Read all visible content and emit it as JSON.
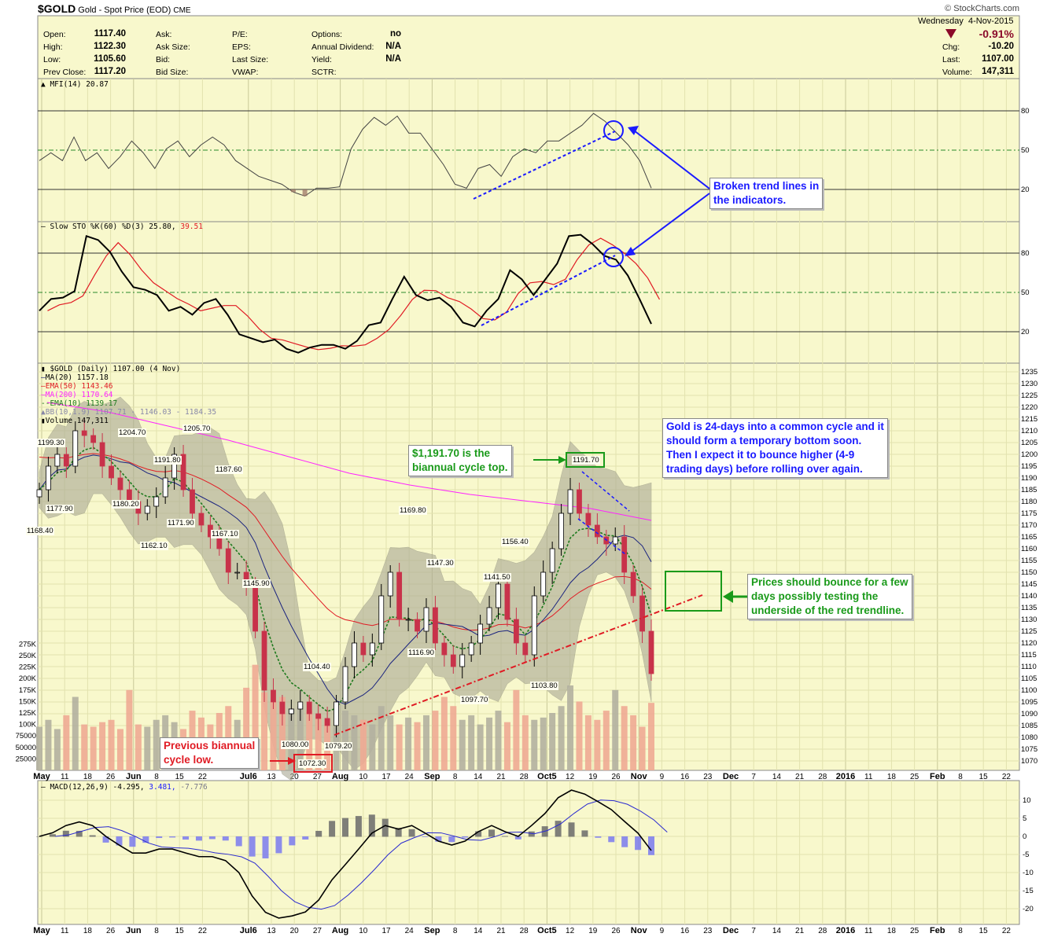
{
  "header": {
    "symbol": "$GOLD",
    "name": "Gold - Spot Price (EOD)",
    "exchange": "CME",
    "copyright": "© StockCharts.com",
    "day": "Wednesday",
    "date": "4-Nov-2015",
    "pct_change": "-0.91%",
    "chg_label": "Chg:",
    "chg": "-10.20",
    "last_label": "Last:",
    "last": "1107.00",
    "volume_label": "Volume:",
    "volume": "147,311",
    "fields": [
      {
        "label": "Open:",
        "value": "1117.40"
      },
      {
        "label": "High:",
        "value": "1122.30"
      },
      {
        "label": "Low:",
        "value": "1105.60"
      },
      {
        "label": "Prev Close:",
        "value": "1117.20"
      },
      {
        "label": "Ask:",
        "value": ""
      },
      {
        "label": "Ask Size:",
        "value": ""
      },
      {
        "label": "Bid:",
        "value": ""
      },
      {
        "label": "Bid Size:",
        "value": ""
      },
      {
        "label": "P/E:",
        "value": ""
      },
      {
        "label": "EPS:",
        "value": ""
      },
      {
        "label": "Last Size:",
        "value": ""
      },
      {
        "label": "VWAP:",
        "value": ""
      },
      {
        "label": "Options:",
        "value": "no"
      },
      {
        "label": "Annual Dividend:",
        "value": "N/A"
      },
      {
        "label": "Yield:",
        "value": "N/A"
      },
      {
        "label": "SCTR:",
        "value": ""
      }
    ],
    "down_color": "#8b0a2a"
  },
  "legends": {
    "mfi": "MFI(14) 20.87",
    "sto": "Slow STO %K(60) %D(3) 25.80,",
    "sto_d": "39.51",
    "price": "$GOLD (Daily) 1107.00 (4 Nov)",
    "ma20": "MA(20) 1157.18",
    "ema50": "EMA(50) 1143.46",
    "ma200": "MA(200) 1170.64",
    "ema10": "EMA(10) 1139.17",
    "bb": "BB(10,1.9) 1107.71 - 1146.03 - 1184.35",
    "volume": "Volume 147,311",
    "macd": "MACD(12,26,9) -4.295,",
    "macd_signal": "3.481,",
    "macd_hist": "-7.776"
  },
  "annotations": {
    "broken": "Broken trend lines in\nthe indicators.",
    "top": "$1,191.70 is the\nbiannual cycle top.",
    "cycle": "Gold is 24-days into a common cycle and it\nshould form a temporary bottom soon.\nThen I expect it to bounce higher (4-9\ntrading days) before rolling over again.",
    "bounce": "Prices should bounce for a few\ndays possibly testing the\nunderside of the red trendline.",
    "low": "Previous biannual\ncycle low."
  },
  "price_labels": [
    "1199.30",
    "1177.90",
    "1168.40",
    "1204.70",
    "1191.80",
    "1180.20",
    "1171.90",
    "1162.10",
    "1205.70",
    "1187.60",
    "1167.10",
    "1145.90",
    "1104.40",
    "1080.00",
    "1079.20",
    "1072.30",
    "1169.80",
    "1147.30",
    "1116.90",
    "1141.50",
    "1156.40",
    "1097.70",
    "1103.80",
    "1191.70"
  ],
  "chart_data": {
    "type": "candlestick",
    "title": "$GOLD Gold - Spot Price (EOD) CME",
    "x_ticks": [
      {
        "label": "May",
        "w": 0,
        "major": true
      },
      {
        "label": "11",
        "w": 1
      },
      {
        "label": "18",
        "w": 2
      },
      {
        "label": "26",
        "w": 3
      },
      {
        "label": "Jun",
        "w": 4,
        "major": true
      },
      {
        "label": "8",
        "w": 5
      },
      {
        "label": "15",
        "w": 6
      },
      {
        "label": "22",
        "w": 7
      },
      {
        "label": "Jul6",
        "w": 9,
        "major": true
      },
      {
        "label": "13",
        "w": 10
      },
      {
        "label": "20",
        "w": 11
      },
      {
        "label": "27",
        "w": 12
      },
      {
        "label": "Aug",
        "w": 13,
        "major": true
      },
      {
        "label": "10",
        "w": 14
      },
      {
        "label": "17",
        "w": 15
      },
      {
        "label": "24",
        "w": 16
      },
      {
        "label": "Sep",
        "w": 17,
        "major": true
      },
      {
        "label": "8",
        "w": 18
      },
      {
        "label": "14",
        "w": 19
      },
      {
        "label": "21",
        "w": 20
      },
      {
        "label": "28",
        "w": 21
      },
      {
        "label": "Oct5",
        "w": 22,
        "major": true
      },
      {
        "label": "12",
        "w": 23
      },
      {
        "label": "19",
        "w": 24
      },
      {
        "label": "26",
        "w": 25
      },
      {
        "label": "Nov",
        "w": 26,
        "major": true
      },
      {
        "label": "9",
        "w": 27
      },
      {
        "label": "16",
        "w": 28
      },
      {
        "label": "23",
        "w": 29
      },
      {
        "label": "Dec",
        "w": 30,
        "major": true
      },
      {
        "label": "7",
        "w": 31
      },
      {
        "label": "14",
        "w": 32
      },
      {
        "label": "21",
        "w": 33
      },
      {
        "label": "28",
        "w": 34
      },
      {
        "label": "2016",
        "w": 35,
        "major": true
      },
      {
        "label": "11",
        "w": 36
      },
      {
        "label": "18",
        "w": 37
      },
      {
        "label": "25",
        "w": 38
      },
      {
        "label": "Feb",
        "w": 39,
        "major": true
      },
      {
        "label": "8",
        "w": 40
      },
      {
        "label": "15",
        "w": 41
      },
      {
        "label": "22",
        "w": 42
      }
    ],
    "price_axis": {
      "min": 1070,
      "max": 1235,
      "step": 5
    },
    "closes": [
      1185,
      1195,
      1200,
      1195,
      1210,
      1208,
      1205,
      1195,
      1190,
      1185,
      1180,
      1175,
      1178,
      1182,
      1190,
      1200,
      1185,
      1175,
      1170,
      1165,
      1160,
      1150,
      1150,
      1145,
      1125,
      1100,
      1095,
      1090,
      1092,
      1095,
      1090,
      1088,
      1085,
      1095,
      1110,
      1120,
      1115,
      1120,
      1140,
      1150,
      1130,
      1130,
      1125,
      1135,
      1120,
      1115,
      1110,
      1115,
      1120,
      1128,
      1135,
      1145,
      1130,
      1120,
      1115,
      1140,
      1150,
      1160,
      1175,
      1185,
      1175,
      1170,
      1165,
      1162,
      1165,
      1150,
      1140,
      1125,
      1107
    ],
    "volume_k": [
      95,
      110,
      90,
      120,
      160,
      100,
      95,
      105,
      110,
      90,
      175,
      100,
      95,
      110,
      120,
      105,
      90,
      130,
      115,
      100,
      125,
      140,
      110,
      180,
      230,
      170,
      150,
      160,
      135,
      140,
      130,
      120,
      110,
      95,
      130,
      120,
      110,
      100,
      140,
      120,
      100,
      115,
      105,
      120,
      130,
      160,
      140,
      110,
      120,
      100,
      115,
      130,
      105,
      175,
      120,
      110,
      115,
      125,
      140,
      185,
      150,
      120,
      110,
      130,
      175,
      140,
      120,
      95,
      147
    ],
    "volume_axis": [
      "25000",
      "50000",
      "75000",
      "100K",
      "125K",
      "150K",
      "175K",
      "200K",
      "225K",
      "250K",
      "275K"
    ],
    "ma200": [
      1222,
      1218,
      1212,
      1206,
      1199,
      1192,
      1187,
      1183,
      1180,
      1177,
      1172
    ],
    "mfi": {
      "values": [
        42,
        48,
        42,
        60,
        42,
        48,
        36,
        45,
        57,
        48,
        36,
        51,
        57,
        45,
        54,
        60,
        54,
        42,
        36,
        30,
        27,
        24,
        18,
        15,
        21,
        21,
        22,
        51,
        66,
        75,
        69,
        76,
        63,
        63,
        51,
        39,
        24,
        21,
        36,
        39,
        30,
        45,
        51,
        48,
        57,
        57,
        63,
        69,
        78,
        72,
        63,
        54,
        42,
        21
      ],
      "levels": [
        20,
        50,
        80
      ]
    },
    "sto_k": {
      "values": [
        36,
        45,
        46,
        51,
        93,
        90,
        81,
        66,
        54,
        52,
        48,
        36,
        39,
        33,
        42,
        45,
        33,
        18,
        15,
        12,
        14,
        7,
        4,
        8,
        10,
        10,
        7,
        13,
        25,
        27,
        45,
        62,
        48,
        44,
        46,
        39,
        27,
        24,
        36,
        45,
        67,
        60,
        48,
        60,
        72,
        93,
        94,
        87,
        78,
        75,
        63,
        45,
        26
      ],
      "levels": [
        20,
        50,
        80
      ]
    },
    "macd": {
      "values": [
        0,
        1,
        3,
        4,
        3,
        0,
        -2.4,
        -4.6,
        -4.6,
        -3.5,
        -3.5,
        -4.6,
        -5.6,
        -5.6,
        -6.7,
        -10,
        -16.5,
        -21,
        -22.6,
        -22,
        -20.9,
        -17.6,
        -12,
        -7.8,
        -3.5,
        0.9,
        3,
        2,
        3,
        0.9,
        -1.3,
        -2.4,
        -1.3,
        1.3,
        3,
        1.3,
        0,
        3,
        6.3,
        10.7,
        12.8,
        11.7,
        9.6,
        7.4,
        4.1,
        0.9,
        -3.9
      ],
      "axis": [
        10,
        5,
        0,
        -5,
        -10,
        -15,
        -20
      ]
    }
  },
  "colors": {
    "plot_bg": "#f8f8cc",
    "grid": "#e2e2ae",
    "ma20": "#1a237e",
    "ema50": "#e01b24",
    "ma200": "#ff22ff",
    "ema10": "#1e7a1e",
    "down": "#c8324a",
    "bb": "#a9a894",
    "vol_up": "#b3b0a0",
    "vol_down": "#eeaa94"
  }
}
